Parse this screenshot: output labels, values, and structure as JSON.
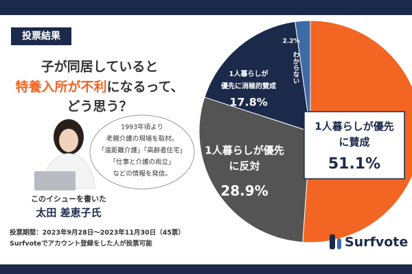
{
  "badge": "投票結果",
  "question": {
    "line1": "子が同居していると",
    "line2_highlight": "特養入所が不利",
    "line2_rest": "になるって、",
    "line3": "どう思う？"
  },
  "bubble": [
    "1993年頃より",
    "老親介護の現場を取材。",
    "「遠距離介護」「高齢者住宅」",
    "「仕事と介護の両立」",
    "などの情報を発信。"
  ],
  "author": {
    "caption": "このイシューを書いた",
    "name": "太田 差恵子氏"
  },
  "footer": [
    "投票期間：2023年9月28日～2023年11月30日（45票）",
    "Surfvoteでアカウント登録をした人が投票可能"
  ],
  "logo": "Surfvote",
  "chart_data": {
    "type": "pie",
    "categories": [
      [
        "1人暮らしが優先",
        "に賛成"
      ],
      [
        "1人暮らしが優先",
        "に反対"
      ],
      [
        "1人暮らしが",
        "優先に消極的賛成"
      ],
      [
        "わからない"
      ]
    ],
    "values": [
      51.1,
      28.9,
      17.8,
      2.2
    ],
    "value_labels": [
      "51.1%",
      "28.9%",
      "17.8%",
      "2.2%"
    ],
    "colors": [
      "#f26522",
      "#545454",
      "#1b2a4a",
      "#3f6aa8"
    ]
  }
}
